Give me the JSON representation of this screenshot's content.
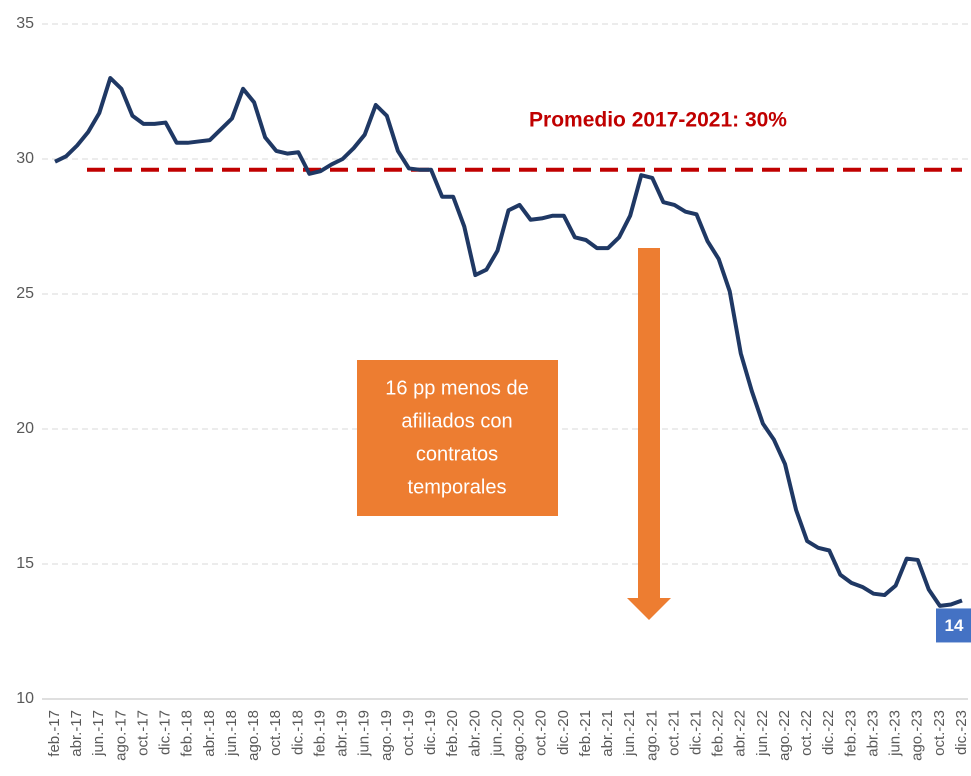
{
  "chart_data": {
    "type": "line",
    "categories": [
      "feb.-17",
      null,
      "abr.-17",
      null,
      "jun.-17",
      null,
      "ago.-17",
      null,
      "oct.-17",
      null,
      "dic.-17",
      null,
      "feb.-18",
      null,
      "abr.-18",
      null,
      "jun.-18",
      null,
      "ago.-18",
      null,
      "oct.-18",
      null,
      "dic.-18",
      null,
      "feb.-19",
      null,
      "abr.-19",
      null,
      "jun.-19",
      null,
      "ago.-19",
      null,
      "oct.-19",
      null,
      "dic.-19",
      null,
      "feb.-20",
      null,
      "abr.-20",
      null,
      "jun.-20",
      null,
      "ago.-20",
      null,
      "oct.-20",
      null,
      "dic.-20",
      null,
      "feb.-21",
      null,
      "abr.-21",
      null,
      "jun.-21",
      null,
      "ago.-21",
      null,
      "oct.-21",
      null,
      "dic.-21",
      null,
      "feb.-22",
      null,
      "abr.-22",
      null,
      "jun.-22",
      null,
      "ago.-22",
      null,
      "oct.-22",
      null,
      "dic.-22",
      null,
      "feb.-23",
      null,
      "abr.-23",
      null,
      "jun.-23",
      null,
      "ago.-23",
      null,
      "oct.-23",
      null,
      "dic.-23"
    ],
    "series": [
      {
        "color": "#1f3864",
        "values": [
          29.9,
          30.1,
          30.5,
          31.0,
          31.7,
          33.0,
          32.6,
          31.6,
          31.3,
          31.3,
          31.35,
          30.6,
          30.6,
          30.65,
          30.7,
          31.1,
          31.5,
          32.6,
          32.1,
          30.8,
          30.3,
          30.2,
          30.25,
          29.45,
          29.55,
          29.8,
          30.0,
          30.4,
          30.9,
          32.0,
          31.6,
          30.3,
          29.65,
          29.6,
          29.6,
          28.6,
          28.6,
          27.5,
          25.7,
          25.9,
          26.6,
          28.1,
          28.3,
          27.75,
          27.8,
          27.9,
          27.9,
          27.1,
          27.0,
          26.7,
          26.7,
          27.1,
          27.9,
          29.4,
          29.3,
          28.4,
          28.3,
          28.05,
          27.95,
          26.95,
          26.3,
          25.1,
          22.8,
          21.4,
          20.2,
          19.6,
          18.7,
          17.0,
          15.85,
          15.6,
          15.5,
          14.6,
          14.3,
          14.15,
          13.9,
          13.85,
          14.2,
          15.2,
          15.15,
          14.05,
          13.45,
          13.5,
          13.65
        ],
        "value_labels": [
          null,
          null,
          null,
          null,
          null,
          null,
          null,
          null,
          null,
          null,
          null,
          null,
          null,
          null,
          null,
          null,
          null,
          null,
          null,
          null,
          null,
          null,
          null,
          null,
          null,
          null,
          null,
          null,
          null,
          null,
          null,
          null,
          null,
          null,
          null,
          null,
          null,
          null,
          null,
          null,
          null,
          null,
          null,
          null,
          null,
          null,
          null,
          null,
          null,
          null,
          null,
          null,
          null,
          null,
          null,
          null,
          null,
          null,
          null,
          null,
          null,
          null,
          null,
          null,
          null,
          null,
          null,
          null,
          null,
          null,
          null,
          null,
          null,
          null,
          null,
          null,
          null,
          null,
          null,
          null,
          null,
          null,
          "14"
        ]
      }
    ],
    "ylim": [
      10,
      35
    ],
    "yticks": [
      10,
      15,
      20,
      25,
      30,
      35
    ],
    "grid": true,
    "reference_line": {
      "value": 29.6,
      "label": "Promedio 2017-2021: 30%",
      "color": "#c00000"
    },
    "annotation": {
      "lines": [
        "16 pp menos de",
        "afiliados con",
        "contratos",
        "temporales"
      ],
      "color": "#ed7d31"
    },
    "label_color": "#4472c4"
  }
}
